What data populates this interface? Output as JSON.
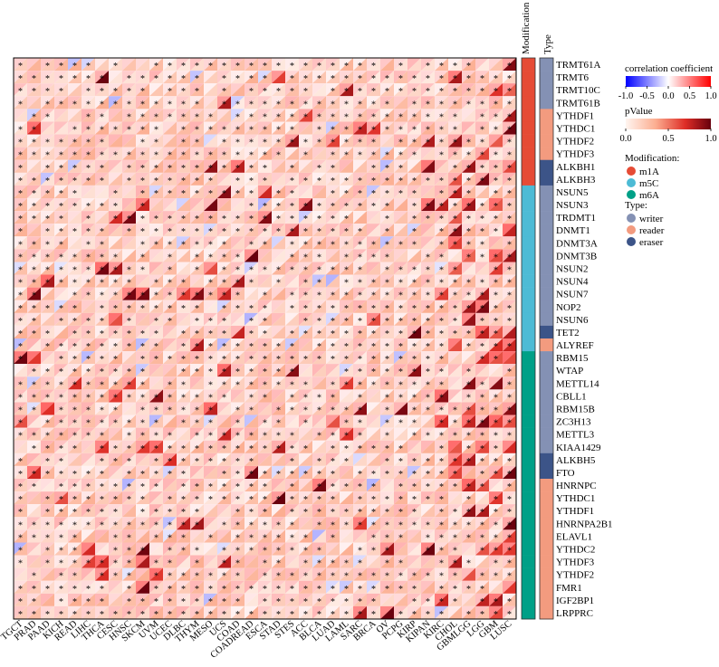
{
  "chart_data": {
    "type": "heatmap",
    "subtype": "triangle split cells (upper-left triangle = correlation coefficient, lower-right triangle = pValue, * = significant)",
    "columns": [
      "TGCT",
      "PRAD",
      "PAAD",
      "KICH",
      "READ",
      "LIHC",
      "THCA",
      "CESC",
      "HNSC",
      "SKCM",
      "UVM",
      "UCEC",
      "DLBC",
      "THYM",
      "MESO",
      "UCS",
      "COAD",
      "COADREAD",
      "ESCA",
      "STAD",
      "STES",
      "ACC",
      "BLCA",
      "LUAD",
      "LAML",
      "SARC",
      "BRCA",
      "OV",
      "PCPG",
      "KIRP",
      "KIPAN",
      "KIRC",
      "CHOL",
      "GBMLGG",
      "LGG",
      "GBM",
      "LUSC"
    ],
    "rows": [
      "TRMT61A",
      "TRMT6",
      "TRMT10C",
      "TRMT61B",
      "YTHDF1",
      "YTHDC1",
      "YTHDF2",
      "YTHDF3",
      "ALKBH1",
      "ALKBH3",
      "NSUN5",
      "NSUN3",
      "TRDMT1",
      "DNMT1",
      "DNMT3A",
      "DNMT3B",
      "NSUN2",
      "NSUN4",
      "NSUN7",
      "NOP2",
      "NSUN6",
      "TET2",
      "ALYREF",
      "RBM15",
      "WTAP",
      "METTL14",
      "CBLL1",
      "RBM15B",
      "ZC3H13",
      "METTL3",
      "KIAA1429",
      "ALKBH5",
      "FTO",
      "HNRNPC",
      "YTHDC1",
      "YTHDF1",
      "HNRNPA2B1",
      "ELAVL1",
      "YTHDC2",
      "YTHDF3",
      "YTHDF2",
      "FMR1",
      "IGF2BP1",
      "LRPPRC"
    ],
    "row_modification": [
      "m1A",
      "m1A",
      "m1A",
      "m1A",
      "m1A",
      "m1A",
      "m1A",
      "m1A",
      "m1A",
      "m1A",
      "m5C",
      "m5C",
      "m5C",
      "m5C",
      "m5C",
      "m5C",
      "m5C",
      "m5C",
      "m5C",
      "m5C",
      "m5C",
      "m5C",
      "m5C",
      "m6A",
      "m6A",
      "m6A",
      "m6A",
      "m6A",
      "m6A",
      "m6A",
      "m6A",
      "m6A",
      "m6A",
      "m6A",
      "m6A",
      "m6A",
      "m6A",
      "m6A",
      "m6A",
      "m6A",
      "m6A",
      "m6A",
      "m6A",
      "m6A"
    ],
    "row_type": [
      "writer",
      "writer",
      "writer",
      "writer",
      "reader",
      "reader",
      "reader",
      "reader",
      "eraser",
      "eraser",
      "writer",
      "writer",
      "writer",
      "writer",
      "writer",
      "writer",
      "writer",
      "writer",
      "writer",
      "writer",
      "writer",
      "eraser",
      "reader",
      "writer",
      "writer",
      "writer",
      "writer",
      "writer",
      "writer",
      "writer",
      "writer",
      "eraser",
      "eraser",
      "reader",
      "reader",
      "reader",
      "reader",
      "reader",
      "reader",
      "reader",
      "reader",
      "reader",
      "reader",
      "reader"
    ],
    "annotation_headers": [
      "Modification",
      "Type"
    ],
    "legend": {
      "correlation_title": "correlation coefficient",
      "correlation_ticks": [
        "-1.0",
        "-0.5",
        "0.0",
        "0.5",
        "1.0"
      ],
      "correlation_range": [
        -1,
        1
      ],
      "pvalue_title": "pValue",
      "pvalue_ticks": [
        "0.0",
        "0.5",
        "1.0"
      ],
      "pvalue_range": [
        0,
        1
      ],
      "modification_title": "Modification:",
      "modification_items": [
        {
          "label": "m1A",
          "color": "#E64B35"
        },
        {
          "label": "m5C",
          "color": "#4DBBD5"
        },
        {
          "label": "m6A",
          "color": "#00A087"
        }
      ],
      "type_title": "Type:",
      "type_items": [
        {
          "label": "writer",
          "color": "#8491B4"
        },
        {
          "label": "reader",
          "color": "#F39B7F"
        },
        {
          "label": "eraser",
          "color": "#3C5488"
        }
      ]
    },
    "significance_marker": "*",
    "cells_note": "per-cell values are approximated procedurally from the visual pattern (mostly weak positive correlations, sparse strong cells)"
  }
}
